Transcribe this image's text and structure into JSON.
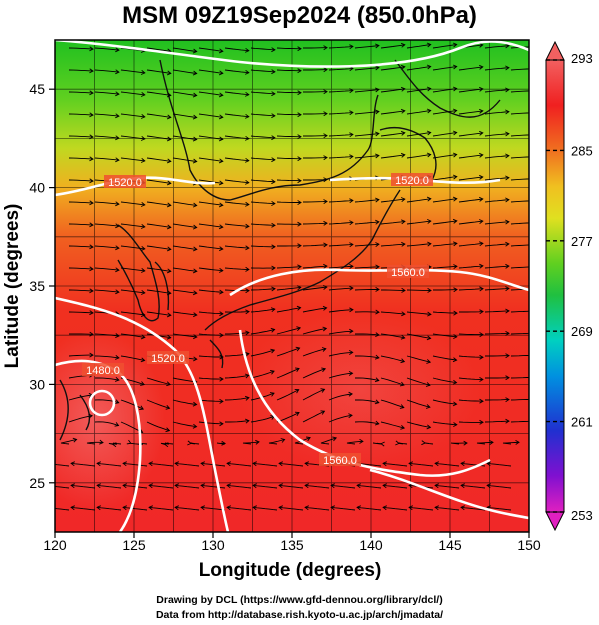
{
  "title": "MSM 09Z19Sep2024 (850.0hPa)",
  "x_axis": {
    "label": "Longitude (degrees)",
    "range": [
      120,
      150
    ],
    "ticks": [
      "120",
      "125",
      "130",
      "135",
      "140",
      "145",
      "150"
    ]
  },
  "y_axis": {
    "label": "Latitude  (degrees)",
    "range": [
      22.5,
      47.5
    ],
    "ticks": [
      "25",
      "30",
      "35",
      "40",
      "45"
    ]
  },
  "colorbar": {
    "range": [
      253,
      293
    ],
    "labels": [
      "293",
      "285",
      "277",
      "269",
      "261",
      "253"
    ],
    "colors": [
      "#e0207a",
      "#d000d0",
      "#2030d0",
      "#0090e0",
      "#00d0c0",
      "#20c020",
      "#80d020",
      "#e0e020",
      "#f0a020",
      "#f05020",
      "#f02020",
      "#f06060"
    ]
  },
  "contours": [
    {
      "label": "1520.0"
    },
    {
      "label": "1520.0"
    },
    {
      "label": "1560.0"
    },
    {
      "label": "1480.0"
    },
    {
      "label": "1520.0"
    },
    {
      "label": "1560.0"
    }
  ],
  "credit": {
    "line1": "Drawing by DCL (https://www.gfd-dennou.org/library/dcl/)",
    "line2": "Data from http://database.rish.kyoto-u.ac.jp/arch/jmadata/"
  }
}
